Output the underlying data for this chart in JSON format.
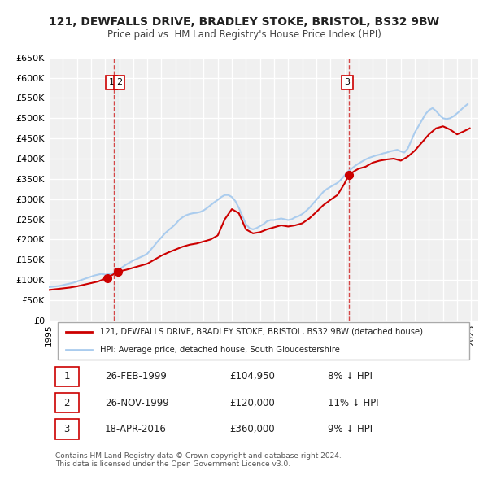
{
  "title": "121, DEWFALLS DRIVE, BRADLEY STOKE, BRISTOL, BS32 9BW",
  "subtitle": "Price paid vs. HM Land Registry's House Price Index (HPI)",
  "xlabel": "",
  "ylabel": "",
  "background_color": "#ffffff",
  "plot_bg_color": "#f0f0f0",
  "grid_color": "#ffffff",
  "sale_color": "#cc0000",
  "hpi_color": "#aaccee",
  "ylim": [
    0,
    650000
  ],
  "yticks": [
    0,
    50000,
    100000,
    150000,
    200000,
    250000,
    300000,
    350000,
    400000,
    450000,
    500000,
    550000,
    600000,
    650000
  ],
  "ytick_labels": [
    "£0",
    "£50K",
    "£100K",
    "£150K",
    "£200K",
    "£250K",
    "£300K",
    "£350K",
    "£400K",
    "£450K",
    "£500K",
    "£550K",
    "£600K",
    "£650K"
  ],
  "xlim_start": 1995.0,
  "xlim_end": 2025.5,
  "xtick_years": [
    1995,
    1996,
    1997,
    1998,
    1999,
    2000,
    2001,
    2002,
    2003,
    2004,
    2005,
    2006,
    2007,
    2008,
    2009,
    2010,
    2011,
    2012,
    2013,
    2014,
    2015,
    2016,
    2017,
    2018,
    2019,
    2020,
    2021,
    2022,
    2023,
    2024,
    2025
  ],
  "sale_points": [
    {
      "year": 1999.15,
      "price": 104950,
      "label": "1"
    },
    {
      "year": 1999.9,
      "price": 120000,
      "label": "2"
    },
    {
      "year": 2016.3,
      "price": 360000,
      "label": "3"
    }
  ],
  "vline_x": [
    1999.6,
    2016.3
  ],
  "legend_sale_label": "121, DEWFALLS DRIVE, BRADLEY STOKE, BRISTOL, BS32 9BW (detached house)",
  "legend_hpi_label": "HPI: Average price, detached house, South Gloucestershire",
  "table_rows": [
    {
      "num": "1",
      "date": "26-FEB-1999",
      "price": "£104,950",
      "pct": "8% ↓ HPI"
    },
    {
      "num": "2",
      "date": "26-NOV-1999",
      "price": "£120,000",
      "pct": "11% ↓ HPI"
    },
    {
      "num": "3",
      "date": "18-APR-2016",
      "price": "£360,000",
      "pct": "9% ↓ HPI"
    }
  ],
  "footer": "Contains HM Land Registry data © Crown copyright and database right 2024.\nThis data is licensed under the Open Government Licence v3.0.",
  "hpi_data": {
    "years": [
      1995.0,
      1995.25,
      1995.5,
      1995.75,
      1996.0,
      1996.25,
      1996.5,
      1996.75,
      1997.0,
      1997.25,
      1997.5,
      1997.75,
      1998.0,
      1998.25,
      1998.5,
      1998.75,
      1999.0,
      1999.25,
      1999.5,
      1999.75,
      2000.0,
      2000.25,
      2000.5,
      2000.75,
      2001.0,
      2001.25,
      2001.5,
      2001.75,
      2002.0,
      2002.25,
      2002.5,
      2002.75,
      2003.0,
      2003.25,
      2003.5,
      2003.75,
      2004.0,
      2004.25,
      2004.5,
      2004.75,
      2005.0,
      2005.25,
      2005.5,
      2005.75,
      2006.0,
      2006.25,
      2006.5,
      2006.75,
      2007.0,
      2007.25,
      2007.5,
      2007.75,
      2008.0,
      2008.25,
      2008.5,
      2008.75,
      2009.0,
      2009.25,
      2009.5,
      2009.75,
      2010.0,
      2010.25,
      2010.5,
      2010.75,
      2011.0,
      2011.25,
      2011.5,
      2011.75,
      2012.0,
      2012.25,
      2012.5,
      2012.75,
      2013.0,
      2013.25,
      2013.5,
      2013.75,
      2014.0,
      2014.25,
      2014.5,
      2014.75,
      2015.0,
      2015.25,
      2015.5,
      2015.75,
      2016.0,
      2016.25,
      2016.5,
      2016.75,
      2017.0,
      2017.25,
      2017.5,
      2017.75,
      2018.0,
      2018.25,
      2018.5,
      2018.75,
      2019.0,
      2019.25,
      2019.5,
      2019.75,
      2020.0,
      2020.25,
      2020.5,
      2020.75,
      2021.0,
      2021.25,
      2021.5,
      2021.75,
      2022.0,
      2022.25,
      2022.5,
      2022.75,
      2023.0,
      2023.25,
      2023.5,
      2023.75,
      2024.0,
      2024.25,
      2024.5,
      2024.75
    ],
    "values": [
      82000,
      83000,
      84000,
      85000,
      87000,
      89000,
      91000,
      93000,
      96000,
      99000,
      102000,
      105000,
      108000,
      111000,
      113000,
      115000,
      113000,
      114000,
      116000,
      120000,
      126000,
      132000,
      138000,
      143000,
      148000,
      152000,
      156000,
      160000,
      165000,
      175000,
      185000,
      196000,
      205000,
      215000,
      223000,
      230000,
      238000,
      248000,
      255000,
      260000,
      263000,
      265000,
      266000,
      268000,
      272000,
      278000,
      285000,
      292000,
      298000,
      305000,
      310000,
      310000,
      305000,
      295000,
      278000,
      258000,
      238000,
      228000,
      225000,
      228000,
      233000,
      238000,
      245000,
      248000,
      248000,
      250000,
      252000,
      250000,
      248000,
      250000,
      255000,
      258000,
      263000,
      270000,
      278000,
      288000,
      298000,
      308000,
      318000,
      325000,
      330000,
      335000,
      340000,
      348000,
      358000,
      368000,
      375000,
      382000,
      388000,
      393000,
      398000,
      402000,
      405000,
      408000,
      410000,
      413000,
      415000,
      418000,
      420000,
      422000,
      418000,
      415000,
      425000,
      445000,
      465000,
      480000,
      495000,
      510000,
      520000,
      525000,
      518000,
      508000,
      500000,
      498000,
      500000,
      505000,
      512000,
      520000,
      528000,
      535000
    ]
  },
  "sale_line_data": {
    "years": [
      1995.0,
      1995.5,
      1996.0,
      1996.5,
      1997.0,
      1997.5,
      1998.0,
      1998.5,
      1999.15,
      1999.9,
      2000.5,
      2001.0,
      2001.5,
      2002.0,
      2002.5,
      2003.0,
      2003.5,
      2004.0,
      2004.5,
      2005.0,
      2005.5,
      2006.0,
      2006.5,
      2007.0,
      2007.5,
      2008.0,
      2008.5,
      2009.0,
      2009.5,
      2010.0,
      2010.5,
      2011.0,
      2011.5,
      2012.0,
      2012.5,
      2013.0,
      2013.5,
      2014.0,
      2014.5,
      2015.0,
      2015.5,
      2016.0,
      2016.3,
      2016.75,
      2017.0,
      2017.5,
      2018.0,
      2018.5,
      2019.0,
      2019.5,
      2020.0,
      2020.5,
      2021.0,
      2021.5,
      2022.0,
      2022.5,
      2023.0,
      2023.5,
      2024.0,
      2024.5,
      2024.9
    ],
    "values": [
      75000,
      77000,
      79000,
      81000,
      84000,
      88000,
      92000,
      96000,
      104950,
      120000,
      125000,
      130000,
      135000,
      140000,
      150000,
      160000,
      168000,
      175000,
      182000,
      187000,
      190000,
      195000,
      200000,
      210000,
      250000,
      275000,
      265000,
      225000,
      215000,
      218000,
      225000,
      230000,
      235000,
      232000,
      235000,
      240000,
      252000,
      268000,
      285000,
      298000,
      310000,
      338000,
      360000,
      370000,
      375000,
      380000,
      390000,
      395000,
      398000,
      400000,
      395000,
      405000,
      420000,
      440000,
      460000,
      475000,
      480000,
      472000,
      460000,
      468000,
      475000
    ]
  }
}
